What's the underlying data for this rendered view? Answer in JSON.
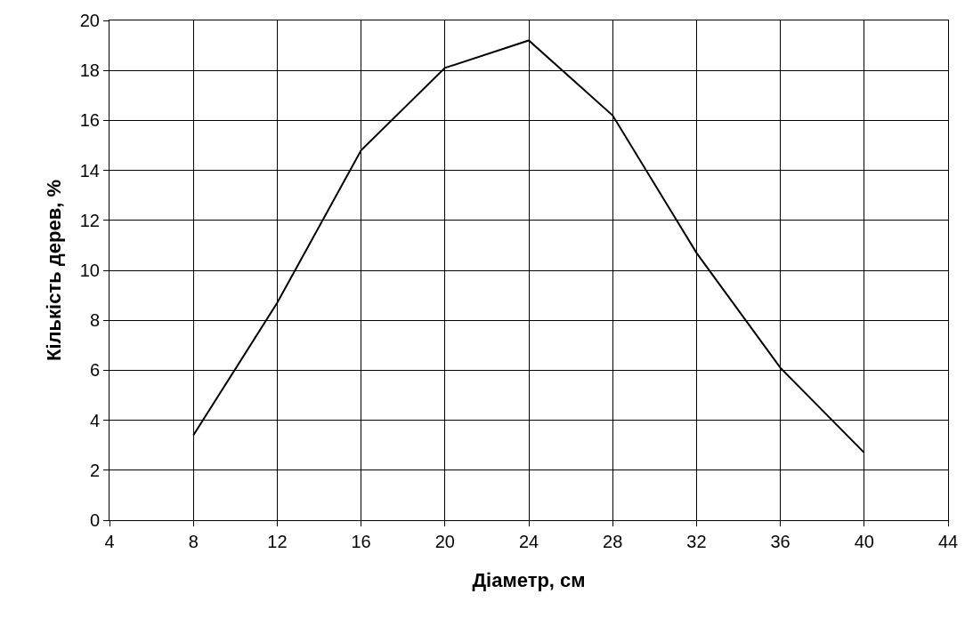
{
  "chart_data": {
    "type": "line",
    "xlabel": "Діаметр, см",
    "ylabel": "Кількість дерев, %",
    "x": [
      8,
      12,
      16,
      20,
      24,
      28,
      32,
      36,
      40
    ],
    "series": [
      {
        "color": "#000000",
        "values": [
          3.4,
          8.7,
          14.8,
          18.1,
          19.2,
          16.2,
          10.7,
          6.1,
          2.7
        ]
      }
    ],
    "xlim": [
      4,
      44
    ],
    "xticks": [
      4,
      8,
      12,
      16,
      20,
      24,
      28,
      32,
      36,
      40,
      44
    ],
    "ylim": [
      0,
      20
    ],
    "yticks": [
      0,
      2,
      4,
      6,
      8,
      10,
      12,
      14,
      16,
      18,
      20
    ],
    "grid": true,
    "marker": "none",
    "line_style": "solid"
  }
}
